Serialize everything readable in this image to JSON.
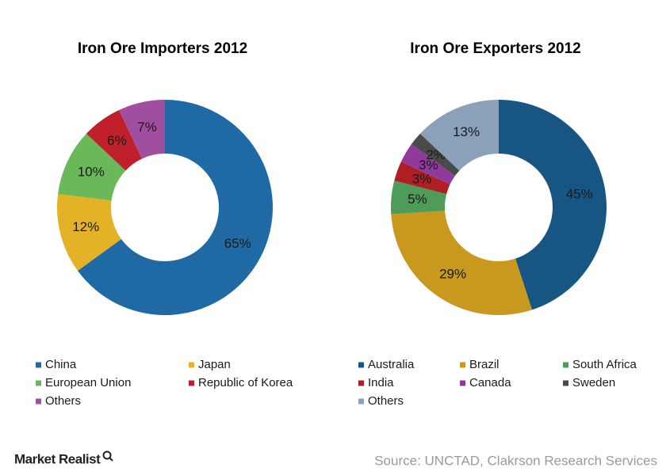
{
  "chart_data": [
    {
      "type": "pie",
      "title": "Iron  Ore Importers  2012",
      "categories": [
        "China",
        "Japan",
        "European Union",
        "Republic of Korea",
        "Others"
      ],
      "values": [
        65,
        12,
        10,
        6,
        7
      ],
      "value_labels": [
        "65%",
        "12%",
        "10%",
        "6%",
        "7%"
      ],
      "colors": [
        "#1f6aa5",
        "#e4b227",
        "#6bb85a",
        "#c0202a",
        "#a04ea0"
      ]
    },
    {
      "type": "pie",
      "title": "Iron  Ore Exporters  2012",
      "categories": [
        "Australia",
        "Brazil",
        "South Africa",
        "India",
        "Canada",
        "Sweden",
        "Others"
      ],
      "values": [
        45,
        29,
        5,
        3,
        3,
        2,
        13
      ],
      "value_labels": [
        "45%",
        "29%",
        "5%",
        "3%",
        "3%",
        "2%",
        "13%"
      ],
      "colors": [
        "#175683",
        "#c9981f",
        "#4e9b5a",
        "#b01e25",
        "#8f3a9c",
        "#4a4a4a",
        "#8aa1b9"
      ]
    }
  ],
  "brand": "Market Realist",
  "source": "Source: UNCTAD, Clakrson Research Services"
}
